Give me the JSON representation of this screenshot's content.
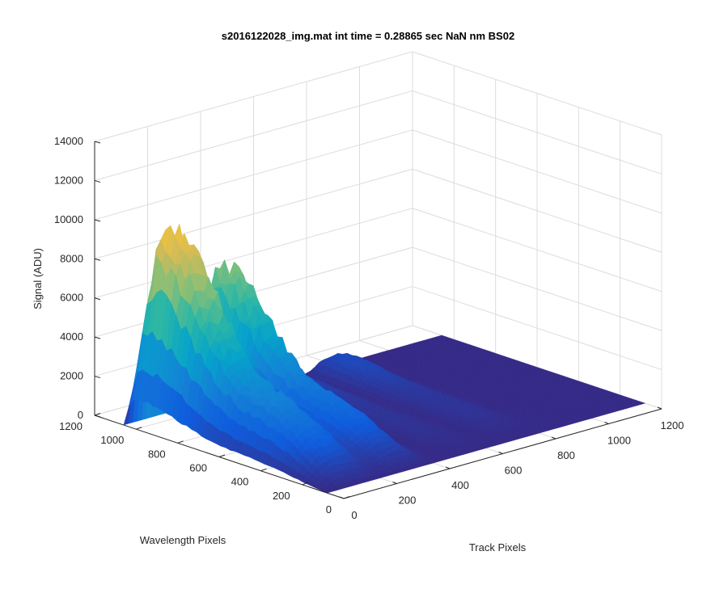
{
  "chart_data": {
    "type": "surface",
    "title": "s2016122028_img.mat int time = 0.28865 sec  NaN nm BS02",
    "xlabel": "Track Pixels",
    "ylabel": "Wavelength Pixels",
    "zlabel": "Signal (ADU)",
    "xlim": [
      0,
      1200
    ],
    "ylim": [
      0,
      1200
    ],
    "zlim": [
      0,
      14000
    ],
    "xticks": [
      "0",
      "200",
      "400",
      "600",
      "800",
      "1000",
      "1200"
    ],
    "yticks": [
      "0",
      "200",
      "400",
      "600",
      "800",
      "1000",
      "1200"
    ],
    "zticks": [
      "0",
      "2000",
      "4000",
      "6000",
      "8000",
      "10000",
      "12000",
      "14000"
    ],
    "grid": true,
    "colormap": "parula",
    "colors": [
      "#352a87",
      "#0f5cdd",
      "#1481d6",
      "#06a4ca",
      "#2eb7a4",
      "#87bf77",
      "#d1bb59",
      "#fec832",
      "#f9fb0e"
    ],
    "peaks": [
      {
        "track_center": 120,
        "track_width": 110,
        "max_signal": 11000,
        "wavelength_start": 80,
        "wavelength_end": 1060
      },
      {
        "track_center": 320,
        "track_width": 90,
        "max_signal": 8200,
        "wavelength_start": 80,
        "wavelength_end": 1060
      },
      {
        "track_center": 560,
        "track_width": 80,
        "max_signal": 900,
        "wavelength_start": 80,
        "wavelength_end": 1060
      },
      {
        "track_center": 760,
        "track_width": 80,
        "max_signal": 1100,
        "wavelength_start": 80,
        "wavelength_end": 1060
      }
    ]
  }
}
